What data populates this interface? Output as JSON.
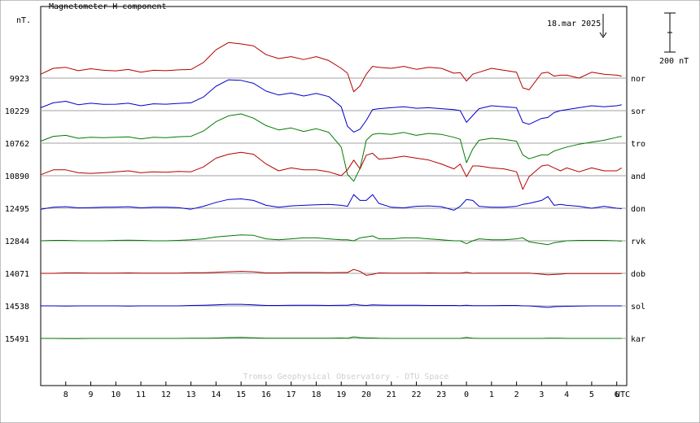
{
  "chart_data": {
    "type": "line",
    "title": "Magnetometer H component",
    "y_unit_label": "nT.",
    "date_label": "18.mar 2025",
    "scale_bar_label": "200 nT",
    "x_unit_label": "UTC",
    "credit": "Tromso Geophysical Observatory - DTU Space",
    "x_tick_labels": [
      "8",
      "9",
      "10",
      "11",
      "12",
      "13",
      "14",
      "15",
      "16",
      "17",
      "18",
      "19",
      "20",
      "21",
      "22",
      "23",
      "0",
      "1",
      "2",
      "3",
      "4",
      "5",
      "6"
    ],
    "x_range_hours": [
      7.0,
      30.4
    ],
    "grid": "horizontal baselines",
    "colors": {
      "red": "#b40000",
      "blue": "#0000cc",
      "green": "#007a00",
      "grid": "#a0a0a0"
    },
    "x": [
      7.0,
      7.5,
      8.0,
      8.5,
      9.0,
      9.5,
      10.0,
      10.5,
      11.0,
      11.5,
      12.0,
      12.5,
      13.0,
      13.5,
      14.0,
      14.5,
      15.0,
      15.5,
      16.0,
      16.5,
      17.0,
      17.5,
      18.0,
      18.5,
      19.0,
      19.25,
      19.5,
      19.75,
      20.0,
      20.25,
      20.5,
      21.0,
      21.5,
      22.0,
      22.5,
      23.0,
      23.5,
      23.75,
      24.0,
      24.25,
      24.5,
      25.0,
      25.5,
      26.0,
      26.25,
      26.5,
      27.0,
      27.25,
      27.5,
      27.75,
      28.0,
      28.5,
      29.0,
      29.5,
      30.0,
      30.2
    ],
    "series": [
      {
        "name": "nor",
        "baseline": 9923,
        "color": "red",
        "values": [
          -20,
          -50,
          -55,
          -38,
          -48,
          -40,
          -37,
          -44,
          -30,
          -40,
          -38,
          -42,
          -44,
          -80,
          -145,
          -182,
          -175,
          -165,
          -120,
          -100,
          -110,
          -95,
          -110,
          -90,
          -50,
          -25,
          70,
          40,
          -20,
          -60,
          -55,
          -50,
          -60,
          -45,
          -55,
          -50,
          -25,
          -28,
          15,
          -20,
          -30,
          -50,
          -40,
          -30,
          50,
          60,
          -25,
          -30,
          -10,
          -15,
          -15,
          0,
          -30,
          -20,
          -15,
          -10
        ]
      },
      {
        "name": "sor",
        "baseline": 10229,
        "color": "blue",
        "values": [
          -15,
          -40,
          -48,
          -30,
          -38,
          -32,
          -33,
          -38,
          -25,
          -35,
          -33,
          -37,
          -40,
          -70,
          -125,
          -158,
          -155,
          -140,
          -100,
          -80,
          -90,
          -75,
          -88,
          -72,
          -20,
          80,
          110,
          95,
          50,
          -5,
          -10,
          -15,
          -20,
          -12,
          -15,
          -10,
          -5,
          0,
          60,
          25,
          -10,
          -25,
          -20,
          -15,
          60,
          70,
          40,
          35,
          10,
          0,
          -5,
          -15,
          -25,
          -20,
          -25,
          -30
        ]
      },
      {
        "name": "tro",
        "baseline": 10762,
        "color": "green",
        "values": [
          -10,
          -35,
          -40,
          -25,
          -30,
          -28,
          -30,
          -32,
          -22,
          -30,
          -28,
          -33,
          -35,
          -62,
          -110,
          -140,
          -150,
          -128,
          -90,
          -68,
          -78,
          -60,
          -74,
          -56,
          20,
          160,
          195,
          130,
          -15,
          -45,
          -50,
          -45,
          -55,
          -40,
          -50,
          -45,
          -30,
          -20,
          100,
          30,
          -15,
          -25,
          -20,
          -10,
          60,
          80,
          60,
          60,
          40,
          30,
          20,
          5,
          -5,
          -15,
          -30,
          -35
        ]
      },
      {
        "name": "and",
        "baseline": 10890,
        "color": "red",
        "values": [
          -5,
          -30,
          -30,
          -15,
          -12,
          -15,
          -20,
          -25,
          -15,
          -20,
          -18,
          -22,
          -20,
          -45,
          -90,
          -110,
          -120,
          -110,
          -60,
          -25,
          -40,
          -30,
          -30,
          -20,
          0,
          -30,
          -80,
          -35,
          -105,
          -115,
          -85,
          -90,
          -100,
          -90,
          -80,
          -60,
          -35,
          -60,
          5,
          -50,
          -50,
          -40,
          -35,
          -20,
          70,
          5,
          -50,
          -55,
          -40,
          -25,
          -40,
          -20,
          -40,
          -25,
          -25,
          -40
        ]
      },
      {
        "name": "don",
        "baseline": 12495,
        "color": "blue",
        "values": [
          5,
          -5,
          -8,
          -2,
          -3,
          -5,
          -6,
          -8,
          -2,
          -5,
          -5,
          -3,
          5,
          -10,
          -30,
          -45,
          -48,
          -40,
          -15,
          -5,
          -12,
          -15,
          -18,
          -20,
          -15,
          -10,
          -70,
          -40,
          -40,
          -70,
          -25,
          -5,
          -2,
          -10,
          -12,
          -8,
          10,
          -10,
          -45,
          -40,
          -10,
          -5,
          -5,
          -10,
          -20,
          -25,
          -40,
          -60,
          -15,
          -20,
          -15,
          -10,
          0,
          -10,
          0,
          2
        ]
      },
      {
        "name": "rvk",
        "baseline": 12844,
        "color": "green",
        "values": [
          0,
          -2,
          -2,
          0,
          0,
          0,
          -2,
          -3,
          -2,
          0,
          0,
          -2,
          -5,
          -10,
          -20,
          -25,
          -30,
          -28,
          -10,
          -5,
          -10,
          -15,
          -15,
          -10,
          -5,
          -5,
          0,
          -15,
          -20,
          -25,
          -10,
          -10,
          -15,
          -15,
          -10,
          -5,
          0,
          0,
          15,
          0,
          -10,
          -5,
          -5,
          -10,
          -15,
          5,
          15,
          20,
          10,
          5,
          0,
          -2,
          -2,
          -2,
          0,
          2
        ]
      },
      {
        "name": "dob",
        "baseline": 14071,
        "color": "red",
        "values": [
          0,
          0,
          -2,
          -2,
          -1,
          -1,
          -1,
          -2,
          -1,
          -1,
          -1,
          -1,
          -3,
          -3,
          -5,
          -8,
          -10,
          -8,
          -2,
          -2,
          -4,
          -4,
          -4,
          -3,
          -4,
          -4,
          -20,
          -10,
          10,
          5,
          -2,
          -1,
          -1,
          -1,
          -2,
          -1,
          -1,
          -1,
          -5,
          0,
          -1,
          -1,
          -1,
          -1,
          -1,
          -1,
          4,
          8,
          6,
          4,
          1,
          1,
          1,
          1,
          1,
          1
        ]
      },
      {
        "name": "sol",
        "baseline": 14538,
        "color": "blue",
        "values": [
          0,
          0,
          1,
          0,
          0,
          0,
          0,
          1,
          0,
          0,
          0,
          0,
          -2,
          -3,
          -5,
          -8,
          -8,
          -5,
          -2,
          -2,
          -3,
          -3,
          -3,
          -2,
          -3,
          -3,
          -8,
          -4,
          -2,
          -5,
          -4,
          -3,
          -3,
          -3,
          -2,
          -2,
          -2,
          -1,
          -3,
          -1,
          -1,
          -1,
          -2,
          -2,
          0,
          0,
          5,
          8,
          4,
          3,
          2,
          1,
          0,
          0,
          0,
          0
        ]
      },
      {
        "name": "kar",
        "baseline": 15491,
        "color": "green",
        "values": [
          0,
          0,
          1,
          1,
          0,
          0,
          0,
          0,
          0,
          0,
          0,
          0,
          -1,
          -1,
          -2,
          -4,
          -5,
          -3,
          -1,
          -1,
          -1,
          -1,
          -1,
          -1,
          -2,
          -1,
          -8,
          -4,
          -2,
          -2,
          -1,
          0,
          0,
          0,
          0,
          0,
          0,
          0,
          -5,
          -1,
          0,
          0,
          0,
          0,
          0,
          0,
          0,
          -1,
          -1,
          -1,
          0,
          0,
          0,
          0,
          0,
          0
        ]
      }
    ]
  }
}
